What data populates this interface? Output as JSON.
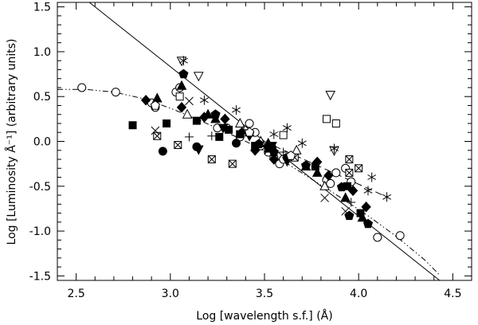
{
  "chart_data": {
    "type": "scatter",
    "title": "",
    "xlabel": "Log [wavelength s.f.] (Å)",
    "ylabel": "Log [Luminosity Å⁻¹] (arbitrary units)",
    "xlim": [
      2.4,
      4.6
    ],
    "ylim": [
      -1.55,
      1.55
    ],
    "xticks": [
      2.5,
      3.0,
      3.5,
      4.0,
      4.5
    ],
    "yticks": [
      -1.5,
      -1.0,
      -0.5,
      0.0,
      0.5,
      1.0,
      1.5
    ],
    "xtick_labels": [
      "2.5",
      "3.0",
      "3.5",
      "4.0",
      "4.5"
    ],
    "ytick_labels": [
      "-1.5",
      "-1.0",
      "-0.5",
      "0.0",
      "0.5",
      "1.0",
      "1.5"
    ],
    "grid": false,
    "legend": "none",
    "colors": {
      "ink": "#000000",
      "hollow": "#ffffff"
    },
    "lines": [
      {
        "style": "solid",
        "x": [
          2.57,
          4.43
        ],
        "y": [
          1.55,
          -1.55
        ]
      },
      {
        "style": "dash-dot-dot",
        "x": [
          2.4,
          2.55,
          2.7,
          2.85,
          3.0,
          3.15,
          3.3,
          3.45,
          3.6,
          3.75,
          3.9,
          4.05,
          4.2,
          4.35,
          4.43
        ],
        "y": [
          0.58,
          0.58,
          0.55,
          0.48,
          0.37,
          0.24,
          0.1,
          -0.05,
          -0.22,
          -0.42,
          -0.62,
          -0.83,
          -1.06,
          -1.32,
          -1.49
        ]
      },
      {
        "style": "dashed",
        "x": [
          3.55,
          4.15
        ],
        "y": [
          -0.05,
          -0.62
        ]
      }
    ],
    "series": [
      {
        "marker": "circle-open",
        "points": [
          [
            2.53,
            0.6
          ],
          [
            2.71,
            0.55
          ],
          [
            2.9,
            0.43
          ],
          [
            2.92,
            0.38
          ],
          [
            3.03,
            0.55
          ],
          [
            3.05,
            0.6
          ],
          [
            3.25,
            0.15
          ],
          [
            3.3,
            0.15
          ],
          [
            3.37,
            0.05
          ],
          [
            3.42,
            0.2
          ],
          [
            3.45,
            0.1
          ],
          [
            3.48,
            -0.05
          ],
          [
            3.52,
            -0.12
          ],
          [
            3.55,
            -0.18
          ],
          [
            3.58,
            -0.25
          ],
          [
            3.6,
            -0.2
          ],
          [
            3.83,
            -0.43
          ],
          [
            3.85,
            -0.47
          ],
          [
            3.88,
            -0.35
          ],
          [
            3.93,
            -0.3
          ],
          [
            3.96,
            -0.45
          ],
          [
            4.1,
            -1.07
          ],
          [
            4.22,
            -1.05
          ]
        ]
      },
      {
        "marker": "circle-filled",
        "points": [
          [
            2.96,
            -0.11
          ],
          [
            3.14,
            -0.06
          ],
          [
            3.35,
            -0.02
          ],
          [
            3.54,
            -0.07
          ],
          [
            3.62,
            -0.18
          ]
        ]
      },
      {
        "marker": "square-filled",
        "points": [
          [
            2.8,
            0.18
          ],
          [
            2.98,
            0.2
          ],
          [
            3.14,
            0.23
          ],
          [
            3.26,
            0.05
          ],
          [
            3.31,
            0.13
          ],
          [
            3.37,
            0.08
          ],
          [
            3.45,
            -0.05
          ],
          [
            3.52,
            -0.08
          ],
          [
            3.77,
            -0.28
          ],
          [
            3.94,
            -0.5
          ],
          [
            4.01,
            -0.8
          ]
        ]
      },
      {
        "marker": "square-open",
        "points": [
          [
            3.05,
            0.5
          ],
          [
            3.6,
            0.07
          ],
          [
            3.83,
            0.25
          ],
          [
            3.88,
            0.2
          ]
        ]
      },
      {
        "marker": "square-x",
        "points": [
          [
            2.93,
            0.06
          ],
          [
            3.04,
            -0.04
          ],
          [
            3.22,
            -0.2
          ],
          [
            3.33,
            -0.25
          ],
          [
            3.66,
            -0.18
          ],
          [
            3.95,
            -0.2
          ],
          [
            3.95,
            -0.35
          ],
          [
            4.0,
            -0.3
          ]
        ]
      },
      {
        "marker": "triangle-up-filled",
        "points": [
          [
            2.93,
            0.48
          ],
          [
            3.06,
            0.62
          ],
          [
            3.2,
            0.3
          ],
          [
            3.24,
            0.25
          ],
          [
            3.42,
            0.1
          ],
          [
            3.48,
            -0.02
          ],
          [
            3.52,
            -0.02
          ],
          [
            3.72,
            -0.28
          ],
          [
            3.78,
            -0.35
          ],
          [
            3.93,
            -0.63
          ],
          [
            4.02,
            -0.85
          ]
        ]
      },
      {
        "marker": "triangle-down-filled",
        "points": [
          [
            3.15,
            -0.09
          ],
          [
            3.28,
            0.15
          ],
          [
            3.42,
            0.06
          ],
          [
            3.54,
            -0.05
          ],
          [
            3.62,
            -0.22
          ]
        ]
      },
      {
        "marker": "triangle-up-open",
        "points": [
          [
            3.09,
            0.3
          ],
          [
            3.37,
            0.2
          ],
          [
            3.48,
            0.0
          ],
          [
            3.67,
            -0.1
          ],
          [
            3.82,
            -0.5
          ]
        ]
      },
      {
        "marker": "triangle-down-open",
        "points": [
          [
            3.06,
            0.9
          ],
          [
            3.15,
            0.73
          ],
          [
            3.85,
            0.52
          ],
          [
            3.87,
            -0.1
          ]
        ]
      },
      {
        "marker": "diamond-filled",
        "points": [
          [
            2.87,
            0.46
          ],
          [
            3.06,
            0.38
          ],
          [
            3.18,
            0.27
          ],
          [
            3.29,
            0.25
          ],
          [
            3.38,
            0.1
          ],
          [
            3.45,
            -0.1
          ],
          [
            3.55,
            -0.2
          ],
          [
            3.78,
            -0.23
          ],
          [
            3.84,
            -0.38
          ],
          [
            3.97,
            -0.55
          ],
          [
            4.04,
            -0.73
          ]
        ]
      },
      {
        "marker": "pentagon-filled",
        "points": [
          [
            3.07,
            0.75
          ],
          [
            3.24,
            0.3
          ],
          [
            3.47,
            -0.03
          ],
          [
            3.55,
            -0.12
          ],
          [
            3.72,
            -0.27
          ],
          [
            3.91,
            -0.51
          ],
          [
            3.95,
            -0.83
          ],
          [
            4.05,
            -0.92
          ]
        ]
      },
      {
        "marker": "pentagon-open",
        "points": [
          [
            2.92,
            0.4
          ],
          [
            3.42,
            0.1
          ],
          [
            3.64,
            -0.16
          ]
        ]
      },
      {
        "marker": "cross-x",
        "points": [
          [
            2.92,
            0.12
          ],
          [
            3.1,
            0.45
          ],
          [
            3.52,
            -0.1
          ],
          [
            3.82,
            -0.63
          ],
          [
            3.93,
            -0.78
          ]
        ]
      },
      {
        "marker": "plus",
        "points": [
          [
            3.1,
            0.05
          ],
          [
            3.22,
            0.06
          ],
          [
            3.39,
            0.13
          ],
          [
            3.6,
            -0.12
          ],
          [
            3.96,
            -0.68
          ]
        ]
      },
      {
        "marker": "asterisk",
        "points": [
          [
            3.07,
            0.9
          ],
          [
            3.18,
            0.46
          ],
          [
            3.35,
            0.35
          ],
          [
            3.55,
            0.08
          ],
          [
            3.62,
            0.15
          ],
          [
            3.7,
            -0.02
          ],
          [
            3.87,
            -0.08
          ],
          [
            4.05,
            -0.55
          ],
          [
            4.07,
            -0.4
          ],
          [
            4.15,
            -0.62
          ]
        ]
      }
    ]
  }
}
